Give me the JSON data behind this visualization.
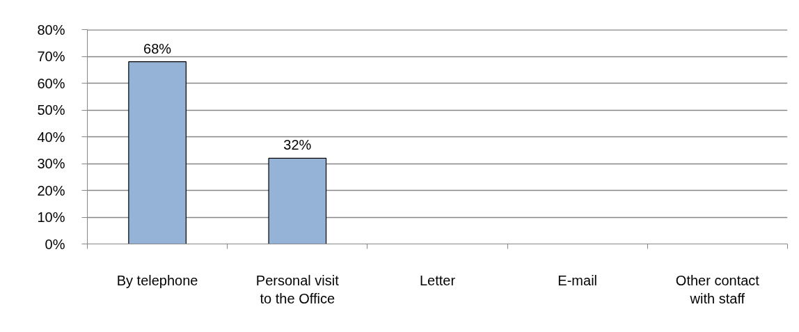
{
  "chart_data": {
    "type": "bar",
    "categories": [
      "By telephone",
      "Personal visit to the Office",
      "Letter",
      "E-mail",
      "Other contact with staff"
    ],
    "values": [
      68,
      32,
      null,
      null,
      null
    ],
    "value_labels": [
      "68%",
      "32%",
      null,
      null,
      null
    ],
    "color": "#95b3d7",
    "ylim": [
      0,
      80
    ],
    "yticks": [
      {
        "value": 0,
        "label": "0%"
      },
      {
        "value": 10,
        "label": "10%"
      },
      {
        "value": 20,
        "label": "20%"
      },
      {
        "value": 30,
        "label": "30%"
      },
      {
        "value": 40,
        "label": "40%"
      },
      {
        "value": 50,
        "label": "50%"
      },
      {
        "value": 60,
        "label": "60%"
      },
      {
        "value": 70,
        "label": "70%"
      },
      {
        "value": 80,
        "label": "80%"
      }
    ],
    "grid": "y"
  }
}
